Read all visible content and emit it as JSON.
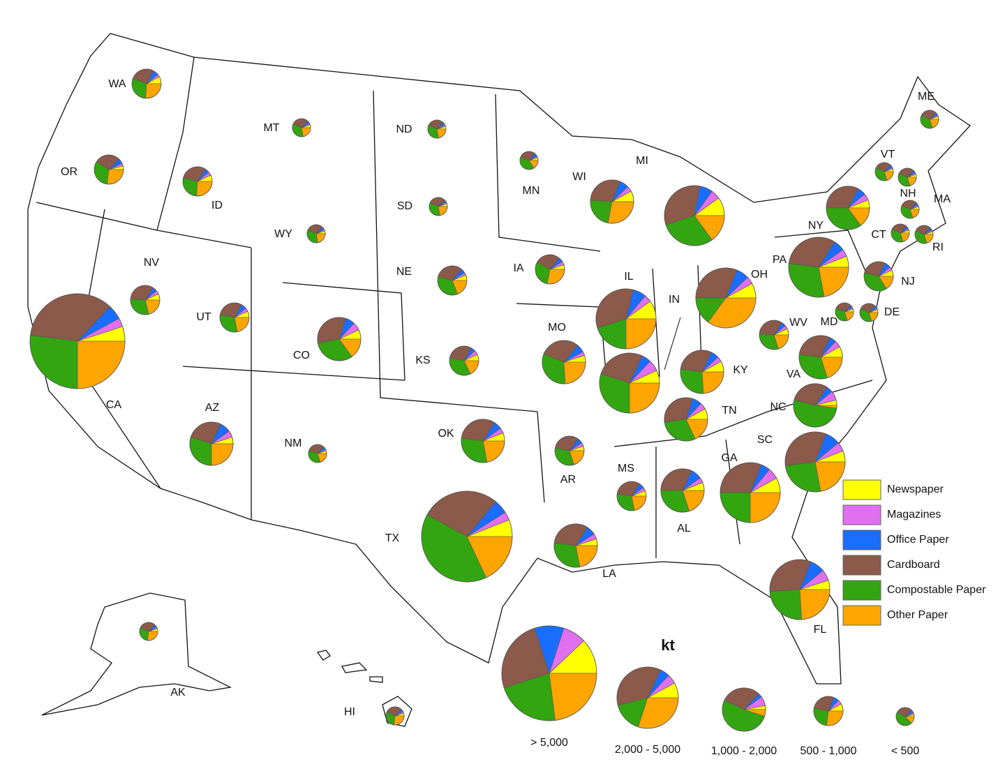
{
  "categories": [
    {
      "label": "Newspaper",
      "color": "#ffff00"
    },
    {
      "label": "Magazines",
      "color": "#e070f0"
    },
    {
      "label": "Office Paper",
      "color": "#1a6eff"
    },
    {
      "label": "Cardboard",
      "color": "#8b5a4a"
    },
    {
      "label": "Compostable Paper",
      "color": "#33a511"
    },
    {
      "label": "Other Paper",
      "color": "#ffa500"
    }
  ],
  "size_legend": {
    "title": "kt",
    "classes": [
      {
        "label": "> 5,000",
        "shares": [
          12,
          8,
          10,
          25,
          22,
          23
        ]
      },
      {
        "label": "2,000 - 5,000",
        "shares": [
          8,
          5,
          5,
          36,
          16,
          30
        ]
      },
      {
        "label": "1,000 - 2,000",
        "shares": [
          3,
          7,
          3,
          30,
          52,
          5
        ]
      },
      {
        "label": "500 - 1,000",
        "shares": [
          8,
          5,
          6,
          28,
          26,
          27
        ]
      },
      {
        "label": "< 500",
        "shares": [
          4,
          3,
          5,
          30,
          45,
          13
        ]
      }
    ]
  },
  "states": [
    {
      "label": "WA",
      "kt": 570,
      "shares": [
        8,
        3,
        6,
        27,
        30,
        26
      ]
    },
    {
      "label": "OR",
      "kt": 570,
      "shares": [
        4,
        3,
        6,
        28,
        32,
        27
      ]
    },
    {
      "label": "ID",
      "kt": 570,
      "shares": [
        7,
        4,
        5,
        30,
        28,
        26
      ]
    },
    {
      "label": "MT",
      "kt": 220,
      "shares": [
        5,
        3,
        5,
        30,
        35,
        22
      ]
    },
    {
      "label": "ND",
      "kt": 220,
      "shares": [
        5,
        3,
        5,
        30,
        35,
        22
      ]
    },
    {
      "label": "SD",
      "kt": 220,
      "shares": [
        5,
        3,
        5,
        30,
        35,
        22
      ]
    },
    {
      "label": "WY",
      "kt": 220,
      "shares": [
        5,
        3,
        5,
        30,
        35,
        22
      ]
    },
    {
      "label": "MN",
      "kt": 220,
      "shares": [
        5,
        3,
        6,
        30,
        40,
        16
      ]
    },
    {
      "label": "WI",
      "kt": 1250,
      "shares": [
        8,
        4,
        7,
        30,
        23,
        28
      ]
    },
    {
      "label": "MI",
      "kt": 2400,
      "shares": [
        10,
        5,
        7,
        33,
        30,
        15
      ]
    },
    {
      "label": "NV",
      "kt": 570,
      "shares": [
        7,
        4,
        5,
        33,
        30,
        21
      ]
    },
    {
      "label": "CA",
      "kt": 6000,
      "shares": [
        5,
        3,
        5,
        35,
        27,
        25
      ]
    },
    {
      "label": "UT",
      "kt": 570,
      "shares": [
        7,
        4,
        6,
        30,
        31,
        22
      ]
    },
    {
      "label": "CO",
      "kt": 1250,
      "shares": [
        7,
        6,
        7,
        33,
        32,
        15
      ]
    },
    {
      "label": "NE",
      "kt": 570,
      "shares": [
        6,
        3,
        5,
        32,
        35,
        19
      ]
    },
    {
      "label": "KS",
      "kt": 570,
      "shares": [
        7,
        5,
        5,
        30,
        35,
        18
      ]
    },
    {
      "label": "IA",
      "kt": 570,
      "shares": [
        5,
        4,
        5,
        28,
        30,
        28
      ]
    },
    {
      "label": "IL",
      "kt": 2400,
      "shares": [
        10,
        4,
        7,
        34,
        20,
        25
      ]
    },
    {
      "label": "IN",
      "kt": 2400,
      "shares": [
        7,
        6,
        5,
        27,
        30,
        25
      ]
    },
    {
      "label": "OH",
      "kt": 2400,
      "shares": [
        8,
        4,
        7,
        31,
        15,
        35
      ]
    },
    {
      "label": "MO",
      "kt": 1250,
      "shares": [
        5,
        3,
        6,
        30,
        32,
        24
      ]
    },
    {
      "label": "KY",
      "kt": 1250,
      "shares": [
        8,
        4,
        6,
        30,
        28,
        24
      ]
    },
    {
      "label": "WV",
      "kt": 570,
      "shares": [
        7,
        4,
        5,
        33,
        31,
        20
      ]
    },
    {
      "label": "VA",
      "kt": 1250,
      "shares": [
        8,
        5,
        5,
        30,
        32,
        20
      ]
    },
    {
      "label": "TN",
      "kt": 1250,
      "shares": [
        8,
        5,
        7,
        32,
        30,
        18
      ]
    },
    {
      "label": "NC",
      "kt": 1250,
      "shares": [
        4,
        7,
        5,
        30,
        52,
        2
      ]
    },
    {
      "label": "SC",
      "kt": 2400,
      "shares": [
        6,
        5,
        8,
        33,
        26,
        22
      ]
    },
    {
      "label": "GA",
      "kt": 2400,
      "shares": [
        8,
        6,
        5,
        31,
        25,
        25
      ]
    },
    {
      "label": "AL",
      "kt": 1250,
      "shares": [
        6,
        4,
        8,
        32,
        30,
        20
      ]
    },
    {
      "label": "MS",
      "kt": 570,
      "shares": [
        6,
        4,
        6,
        32,
        30,
        22
      ]
    },
    {
      "label": "AR",
      "kt": 570,
      "shares": [
        5,
        4,
        6,
        32,
        33,
        20
      ]
    },
    {
      "label": "LA",
      "kt": 1250,
      "shares": [
        5,
        4,
        7,
        32,
        30,
        22
      ]
    },
    {
      "label": "TX",
      "kt": 5480,
      "shares": [
        6,
        3,
        5,
        28,
        40,
        18
      ]
    },
    {
      "label": "OK",
      "kt": 1250,
      "shares": [
        6,
        4,
        6,
        32,
        30,
        22
      ]
    },
    {
      "label": "NM",
      "kt": 220,
      "shares": [
        5,
        3,
        5,
        32,
        35,
        20
      ]
    },
    {
      "label": "AZ",
      "kt": 1250,
      "shares": [
        5,
        5,
        8,
        27,
        30,
        25
      ]
    },
    {
      "label": "FL",
      "kt": 2400,
      "shares": [
        5,
        6,
        8,
        32,
        25,
        24
      ]
    },
    {
      "label": "NY",
      "kt": 1250,
      "shares": [
        6,
        5,
        6,
        33,
        35,
        15
      ]
    },
    {
      "label": "PA",
      "kt": 2400,
      "shares": [
        6,
        4,
        6,
        32,
        30,
        22
      ]
    },
    {
      "label": "VT",
      "kt": 220,
      "shares": [
        5,
        3,
        5,
        30,
        37,
        20
      ]
    },
    {
      "label": "NH",
      "kt": 220,
      "shares": [
        5,
        3,
        5,
        30,
        37,
        20
      ]
    },
    {
      "label": "ME",
      "kt": 220,
      "shares": [
        5,
        3,
        5,
        30,
        37,
        20
      ]
    },
    {
      "label": "MA",
      "kt": 220,
      "shares": [
        5,
        3,
        5,
        30,
        37,
        20
      ]
    },
    {
      "label": "CT",
      "kt": 220,
      "shares": [
        5,
        3,
        5,
        30,
        37,
        20
      ]
    },
    {
      "label": "RI",
      "kt": 220,
      "shares": [
        5,
        3,
        5,
        30,
        37,
        20
      ]
    },
    {
      "label": "NJ",
      "kt": 570,
      "shares": [
        7,
        4,
        7,
        28,
        38,
        16
      ]
    },
    {
      "label": "DE",
      "kt": 220,
      "shares": [
        5,
        3,
        5,
        30,
        37,
        20
      ]
    },
    {
      "label": "MD",
      "kt": 220,
      "shares": [
        5,
        3,
        5,
        30,
        37,
        20
      ]
    },
    {
      "label": "AK",
      "kt": 220,
      "shares": [
        5,
        3,
        5,
        30,
        30,
        27
      ]
    },
    {
      "label": "HI",
      "kt": 220,
      "shares": [
        5,
        3,
        5,
        30,
        30,
        27
      ]
    }
  ]
}
